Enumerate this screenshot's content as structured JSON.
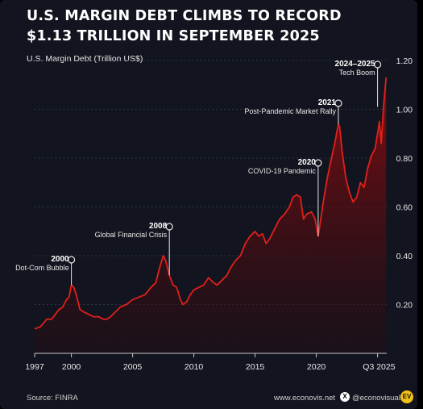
{
  "title_line1": "U.S. MARGIN DEBT CLIMBS TO RECORD",
  "title_line2": "$1.13 TRILLION IN SEPTEMBER 2025",
  "footer": {
    "source": "Source: FINRA",
    "site": "www.econovis.net",
    "x_icon": "x-logo-icon",
    "x_glyph": "X",
    "handle": "@econovisuals",
    "logo_text": "EV"
  },
  "colors": {
    "background": "#12151f",
    "line": "#e0201b",
    "area_top": "#8a0d12",
    "grid": "#3a3f4c"
  },
  "chart_data": {
    "type": "area",
    "ylabel": "U.S. Margin Debt (Trillion US$)",
    "xlabel": "",
    "ylim": [
      0,
      1.2
    ],
    "yticks": [
      0.2,
      0.4,
      0.6,
      0.8,
      1.0,
      1.2
    ],
    "ytick_labels": [
      "0.20",
      "0.40",
      "0.60",
      "0.80",
      "1.00",
      "1.20"
    ],
    "xlim": [
      1997,
      2025.75
    ],
    "xticks": [
      1997,
      2000,
      2005,
      2010,
      2015,
      2020,
      2025
    ],
    "xtick_labels": [
      "1997",
      "2000",
      "2005",
      "2010",
      "2015",
      "2020",
      "Q3 2025"
    ],
    "grid": "horizontal",
    "series": [
      {
        "x": [
          1997.0,
          1997.5,
          1998.0,
          1998.4,
          1998.7,
          1999.0,
          1999.3,
          1999.6,
          1999.8,
          2000.0,
          2000.2,
          2000.4,
          2000.7,
          2001.0,
          2001.4,
          2001.8,
          2002.2,
          2002.6,
          2002.9,
          2003.2,
          2003.6,
          2004.0,
          2004.5,
          2005.0,
          2005.5,
          2006.0,
          2006.5,
          2006.9,
          2007.2,
          2007.5,
          2007.7,
          2008.0,
          2008.3,
          2008.6,
          2008.9,
          2009.1,
          2009.4,
          2009.7,
          2010.0,
          2010.4,
          2010.8,
          2011.2,
          2011.6,
          2011.9,
          2012.3,
          2012.7,
          2013.0,
          2013.4,
          2013.8,
          2014.2,
          2014.6,
          2015.0,
          2015.3,
          2015.6,
          2015.9,
          2016.2,
          2016.6,
          2017.0,
          2017.4,
          2017.8,
          2018.1,
          2018.4,
          2018.7,
          2018.95,
          2019.2,
          2019.6,
          2019.9,
          2020.15,
          2020.3,
          2020.6,
          2020.9,
          2021.2,
          2021.5,
          2021.8,
          2021.9,
          2022.1,
          2022.4,
          2022.7,
          2023.0,
          2023.3,
          2023.6,
          2023.9,
          2024.2,
          2024.5,
          2024.8,
          2025.0,
          2025.15,
          2025.3,
          2025.5,
          2025.7
        ],
        "y": [
          0.1,
          0.11,
          0.14,
          0.14,
          0.16,
          0.18,
          0.19,
          0.22,
          0.23,
          0.28,
          0.27,
          0.24,
          0.18,
          0.17,
          0.16,
          0.15,
          0.15,
          0.14,
          0.14,
          0.15,
          0.17,
          0.19,
          0.2,
          0.22,
          0.23,
          0.24,
          0.27,
          0.29,
          0.35,
          0.4,
          0.38,
          0.32,
          0.28,
          0.27,
          0.22,
          0.2,
          0.21,
          0.24,
          0.26,
          0.27,
          0.28,
          0.31,
          0.29,
          0.28,
          0.3,
          0.32,
          0.35,
          0.38,
          0.4,
          0.45,
          0.48,
          0.5,
          0.48,
          0.49,
          0.45,
          0.47,
          0.51,
          0.55,
          0.57,
          0.6,
          0.64,
          0.65,
          0.64,
          0.55,
          0.57,
          0.58,
          0.55,
          0.48,
          0.53,
          0.63,
          0.72,
          0.79,
          0.86,
          0.94,
          0.93,
          0.83,
          0.72,
          0.66,
          0.62,
          0.64,
          0.7,
          0.68,
          0.76,
          0.81,
          0.84,
          0.9,
          0.95,
          0.86,
          1.02,
          1.13
        ]
      }
    ],
    "annotations": [
      {
        "year": "2000",
        "label": "Dot-Com Bubble",
        "x": 2000.0,
        "y": 0.28
      },
      {
        "year": "2008",
        "label": "Global Financial Crisis",
        "x": 2008.0,
        "y": 0.32
      },
      {
        "year": "2020",
        "label": "COVID-19 Pandemic",
        "x": 2020.15,
        "y": 0.48
      },
      {
        "year": "2021",
        "label": "Post-Pandemic Market Rally",
        "x": 2021.8,
        "y": 0.94
      },
      {
        "year": "2024–2025",
        "label": "Tech Boom",
        "x": 2025.0,
        "y": 1.01
      }
    ]
  }
}
